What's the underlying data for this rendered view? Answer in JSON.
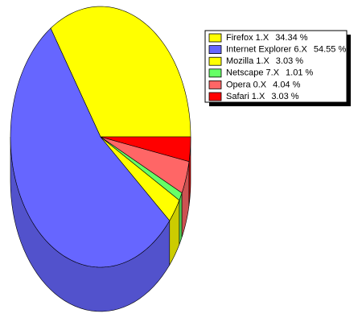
{
  "chart_data": {
    "type": "pie",
    "categories": [
      "Firefox 1.X",
      "Internet Explorer 6.X",
      "Mozilla 1.X",
      "Netscape 7.X",
      "Opera 0.X",
      "Safari 1.X"
    ],
    "values": [
      34.34,
      54.55,
      3.03,
      1.01,
      4.04,
      3.03
    ],
    "value_labels": [
      "34.34 %",
      "54.55 %",
      "3.03 %",
      "1.01 %",
      "4.04 %",
      "3.03 %"
    ],
    "colors": [
      "#ffff00",
      "#6666ff",
      "#ffff00",
      "#66ff66",
      "#ff6666",
      "#ff0000"
    ],
    "legend": "upper-right"
  }
}
